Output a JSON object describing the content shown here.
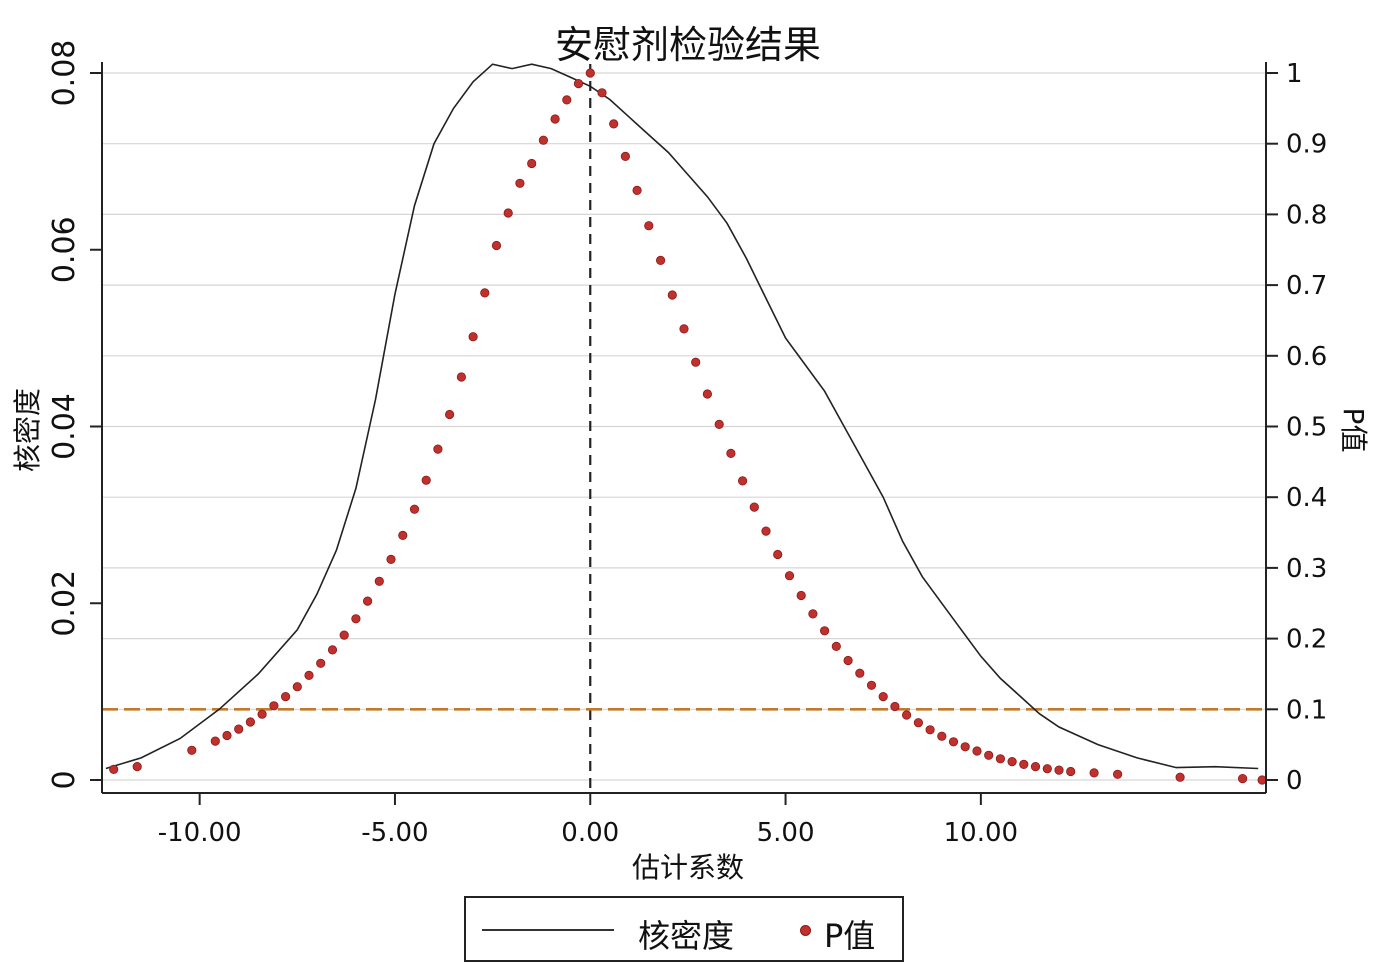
{
  "chart_data": {
    "type": "line",
    "title": "安慰剂检验结果",
    "xlabel": "估计系数",
    "ylabel_left": "核密度",
    "ylabel_right": "P值",
    "xlim": [
      -12.5,
      17.3
    ],
    "ylim_left": [
      0,
      0.08
    ],
    "ylim_right": [
      0,
      1
    ],
    "x_ticks": [
      -10,
      -5,
      0,
      5,
      10
    ],
    "x_tick_labels": [
      "-10.00",
      "-5.00",
      "0.00",
      "5.00",
      "10.00"
    ],
    "y_left_ticks": [
      0,
      0.02,
      0.04,
      0.06,
      0.08
    ],
    "y_left_tick_labels": [
      "0",
      "0.02",
      "0.04",
      "0.06",
      "0.08"
    ],
    "y_right_ticks": [
      0,
      0.1,
      0.2,
      0.3,
      0.4,
      0.5,
      0.6,
      0.7,
      0.8,
      0.9,
      1
    ],
    "y_right_tick_labels": [
      "0",
      "0.1",
      "0.2",
      "0.3",
      "0.4",
      "0.5",
      "0.6",
      "0.7",
      "0.8",
      "0.9",
      "1"
    ],
    "grid": true,
    "reference_lines": [
      {
        "axis": "x",
        "value": 0,
        "style": "dashed",
        "color": "#222222"
      },
      {
        "axis": "y_right",
        "value": 0.1,
        "style": "dashed",
        "color": "#c07a2a"
      }
    ],
    "series": [
      {
        "name": "核密度",
        "type": "line",
        "axis": "left",
        "color": "#222222",
        "x": [
          -12.4,
          -11.5,
          -10.5,
          -9.5,
          -8.5,
          -7.5,
          -7.0,
          -6.5,
          -6.0,
          -5.5,
          -5.0,
          -4.5,
          -4.0,
          -3.5,
          -3.0,
          -2.5,
          -2.0,
          -1.5,
          -1.0,
          -0.5,
          0.0,
          0.5,
          1.0,
          1.5,
          2.0,
          2.5,
          3.0,
          3.5,
          4.0,
          4.5,
          5.0,
          5.5,
          6.0,
          6.5,
          7.0,
          7.5,
          8.0,
          8.5,
          9.0,
          9.5,
          10.0,
          10.5,
          11.0,
          11.5,
          12.0,
          13.0,
          14.0,
          15.0,
          16.0,
          17.1
        ],
        "y": [
          0.0013,
          0.0025,
          0.0047,
          0.008,
          0.012,
          0.017,
          0.021,
          0.026,
          0.033,
          0.043,
          0.055,
          0.065,
          0.072,
          0.076,
          0.079,
          0.081,
          0.0805,
          0.081,
          0.0805,
          0.0795,
          0.0785,
          0.077,
          0.075,
          0.073,
          0.071,
          0.0685,
          0.066,
          0.063,
          0.059,
          0.0545,
          0.05,
          0.047,
          0.044,
          0.04,
          0.036,
          0.032,
          0.027,
          0.023,
          0.02,
          0.017,
          0.014,
          0.0115,
          0.0095,
          0.0075,
          0.006,
          0.004,
          0.0025,
          0.0014,
          0.0015,
          0.0013
        ]
      },
      {
        "name": "P值",
        "type": "scatter",
        "axis": "right",
        "color": "#c0302d",
        "x": [
          -12.2,
          -11.6,
          -10.2,
          -9.6,
          -9.3,
          -9.0,
          -8.7,
          -8.4,
          -8.1,
          -7.8,
          -7.5,
          -7.2,
          -6.9,
          -6.6,
          -6.3,
          -6.0,
          -5.7,
          -5.4,
          -5.1,
          -4.8,
          -4.5,
          -4.2,
          -3.9,
          -3.6,
          -3.3,
          -3.0,
          -2.7,
          -2.4,
          -2.1,
          -1.8,
          -1.5,
          -1.2,
          -0.9,
          -0.6,
          -0.3,
          0.0,
          0.3,
          0.6,
          0.9,
          1.2,
          1.5,
          1.8,
          2.1,
          2.4,
          2.7,
          3.0,
          3.3,
          3.6,
          3.9,
          4.2,
          4.5,
          4.8,
          5.1,
          5.4,
          5.7,
          6.0,
          6.3,
          6.6,
          6.9,
          7.2,
          7.5,
          7.8,
          8.1,
          8.4,
          8.7,
          9.0,
          9.3,
          9.6,
          9.9,
          10.2,
          10.5,
          10.8,
          11.1,
          11.4,
          11.7,
          12.0,
          12.3,
          12.9,
          13.5,
          15.1,
          16.7,
          17.2
        ],
        "y": [
          0.015,
          0.019,
          0.042,
          0.055,
          0.063,
          0.072,
          0.082,
          0.093,
          0.105,
          0.118,
          0.132,
          0.148,
          0.165,
          0.184,
          0.205,
          0.228,
          0.253,
          0.281,
          0.312,
          0.346,
          0.383,
          0.424,
          0.468,
          0.517,
          0.57,
          0.627,
          0.689,
          0.756,
          0.802,
          0.844,
          0.872,
          0.905,
          0.935,
          0.962,
          0.985,
          1.0,
          0.972,
          0.928,
          0.882,
          0.834,
          0.784,
          0.735,
          0.686,
          0.638,
          0.591,
          0.546,
          0.503,
          0.462,
          0.423,
          0.386,
          0.352,
          0.319,
          0.289,
          0.261,
          0.235,
          0.211,
          0.189,
          0.169,
          0.151,
          0.134,
          0.118,
          0.104,
          0.092,
          0.081,
          0.071,
          0.062,
          0.054,
          0.047,
          0.041,
          0.035,
          0.03,
          0.026,
          0.022,
          0.019,
          0.016,
          0.014,
          0.012,
          0.01,
          0.008,
          0.004,
          0.002,
          0.0
        ]
      }
    ],
    "legend": {
      "position": "bottom",
      "entries": [
        "核密度",
        "P值"
      ]
    }
  }
}
